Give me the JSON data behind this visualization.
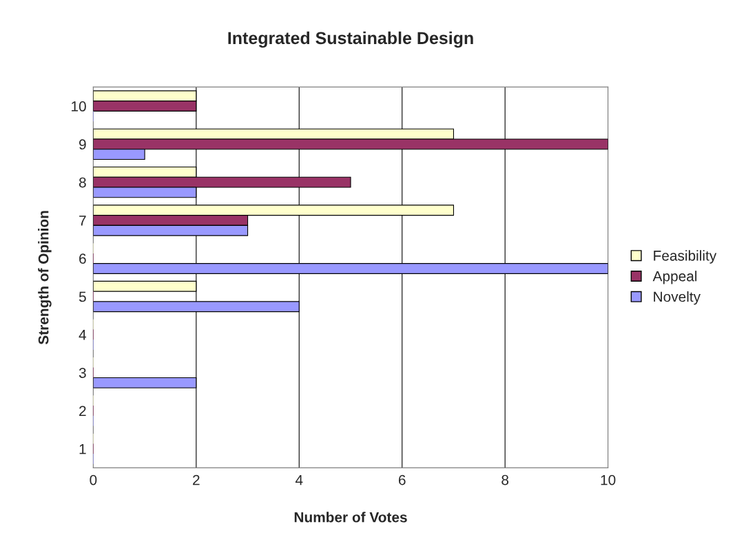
{
  "chart_data": {
    "type": "bar",
    "orientation": "horizontal",
    "title": "Integrated Sustainable Design",
    "xlabel": "Number of Votes",
    "ylabel": "Strength of Opinion",
    "categories": [
      "10",
      "9",
      "8",
      "7",
      "6",
      "5",
      "4",
      "3",
      "2",
      "1"
    ],
    "series": [
      {
        "name": "Feasibility",
        "color": "#ffffcc",
        "values": [
          2,
          7,
          2,
          7,
          0,
          2,
          0,
          0,
          0,
          0
        ]
      },
      {
        "name": "Appeal",
        "color": "#993366",
        "values": [
          2,
          10,
          5,
          3,
          0,
          0,
          0,
          0,
          0,
          0
        ]
      },
      {
        "name": "Novelty",
        "color": "#9999ff",
        "values": [
          0,
          1,
          2,
          3,
          10,
          4,
          0,
          2,
          0,
          0
        ]
      }
    ],
    "xlim": [
      0,
      10
    ],
    "xticks": [
      0,
      2,
      4,
      6,
      8,
      10
    ],
    "grid": "x",
    "legend": "right"
  }
}
